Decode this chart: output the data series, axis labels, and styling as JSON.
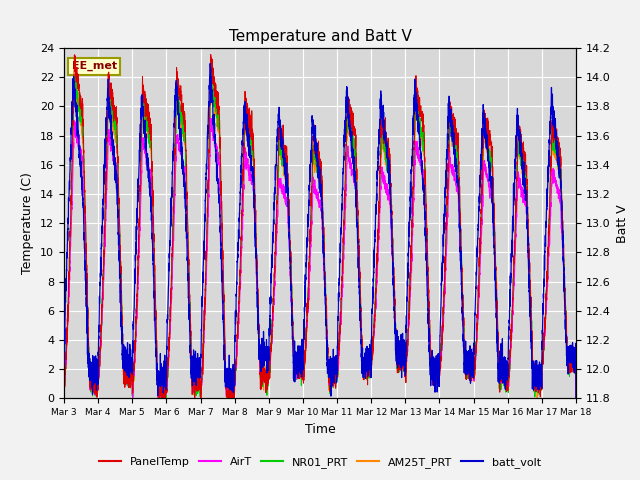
{
  "title": "Temperature and Batt V",
  "xlabel": "Time",
  "ylabel_left": "Temperature (C)",
  "ylabel_right": "Batt V",
  "annotation": "EE_met",
  "ylim_left": [
    0,
    24
  ],
  "ylim_right": [
    11.8,
    14.2
  ],
  "xtick_labels": [
    "Mar 3",
    "Mar 4",
    "Mar 5",
    "Mar 6",
    "Mar 7",
    "Mar 8",
    "Mar 9",
    "Mar 10",
    "Mar 11",
    "Mar 12",
    "Mar 13",
    "Mar 14",
    "Mar 15",
    "Mar 16",
    "Mar 17",
    "Mar 18"
  ],
  "colors": {
    "PanelTemp": "#dd0000",
    "AirT": "#ff00ff",
    "NR01_PRT": "#00cc00",
    "AM25T_PRT": "#ff8800",
    "batt_volt": "#0000cc"
  },
  "background_color": "#e0e0e0",
  "plot_bg": "#d8d8d8",
  "fig_bg": "#f2f2f2",
  "title_fontsize": 11,
  "n_days": 15,
  "pts_per_day": 288
}
